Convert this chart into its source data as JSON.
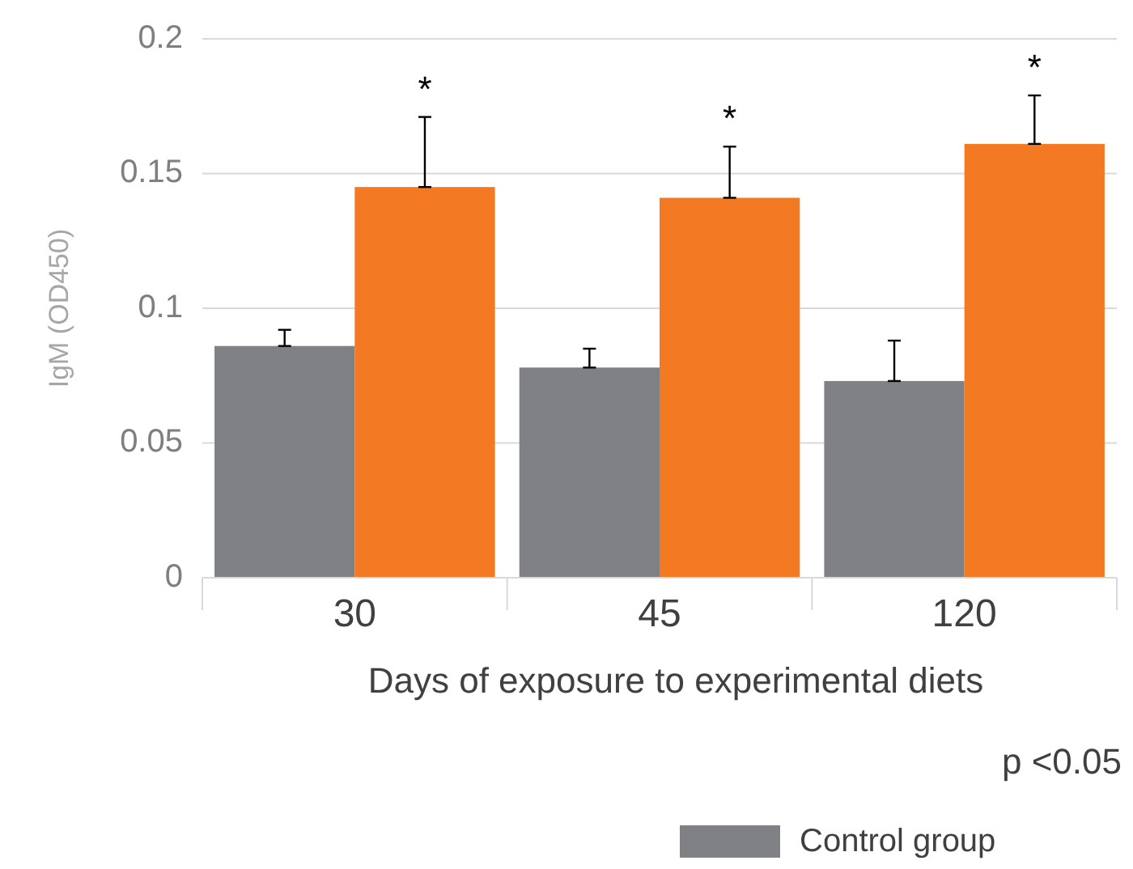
{
  "chart_data": {
    "type": "bar",
    "xlabel": "Days of exposure to experimental diets",
    "ylabel": "IgM (OD450)",
    "categories": [
      "30",
      "45",
      "120"
    ],
    "series": [
      {
        "name": "Control group",
        "color": "#808184",
        "values": [
          0.086,
          0.078,
          0.073
        ],
        "errors": [
          [
            0.086,
            0.092
          ],
          [
            0.078,
            0.085
          ],
          [
            0.073,
            0.088
          ]
        ]
      },
      {
        "color": "#f37a23",
        "values": [
          0.145,
          0.141,
          0.161
        ],
        "errors": [
          [
            0.145,
            0.171
          ],
          [
            0.141,
            0.16
          ],
          [
            0.161,
            0.179
          ]
        ]
      }
    ],
    "ylim": [
      0,
      0.2
    ],
    "yticks": [
      0,
      0.05,
      0.1,
      0.15,
      0.2
    ],
    "grid": "y",
    "legend": "bottom",
    "annotations": [
      "*",
      "*",
      "*",
      "p <0.05"
    ]
  }
}
